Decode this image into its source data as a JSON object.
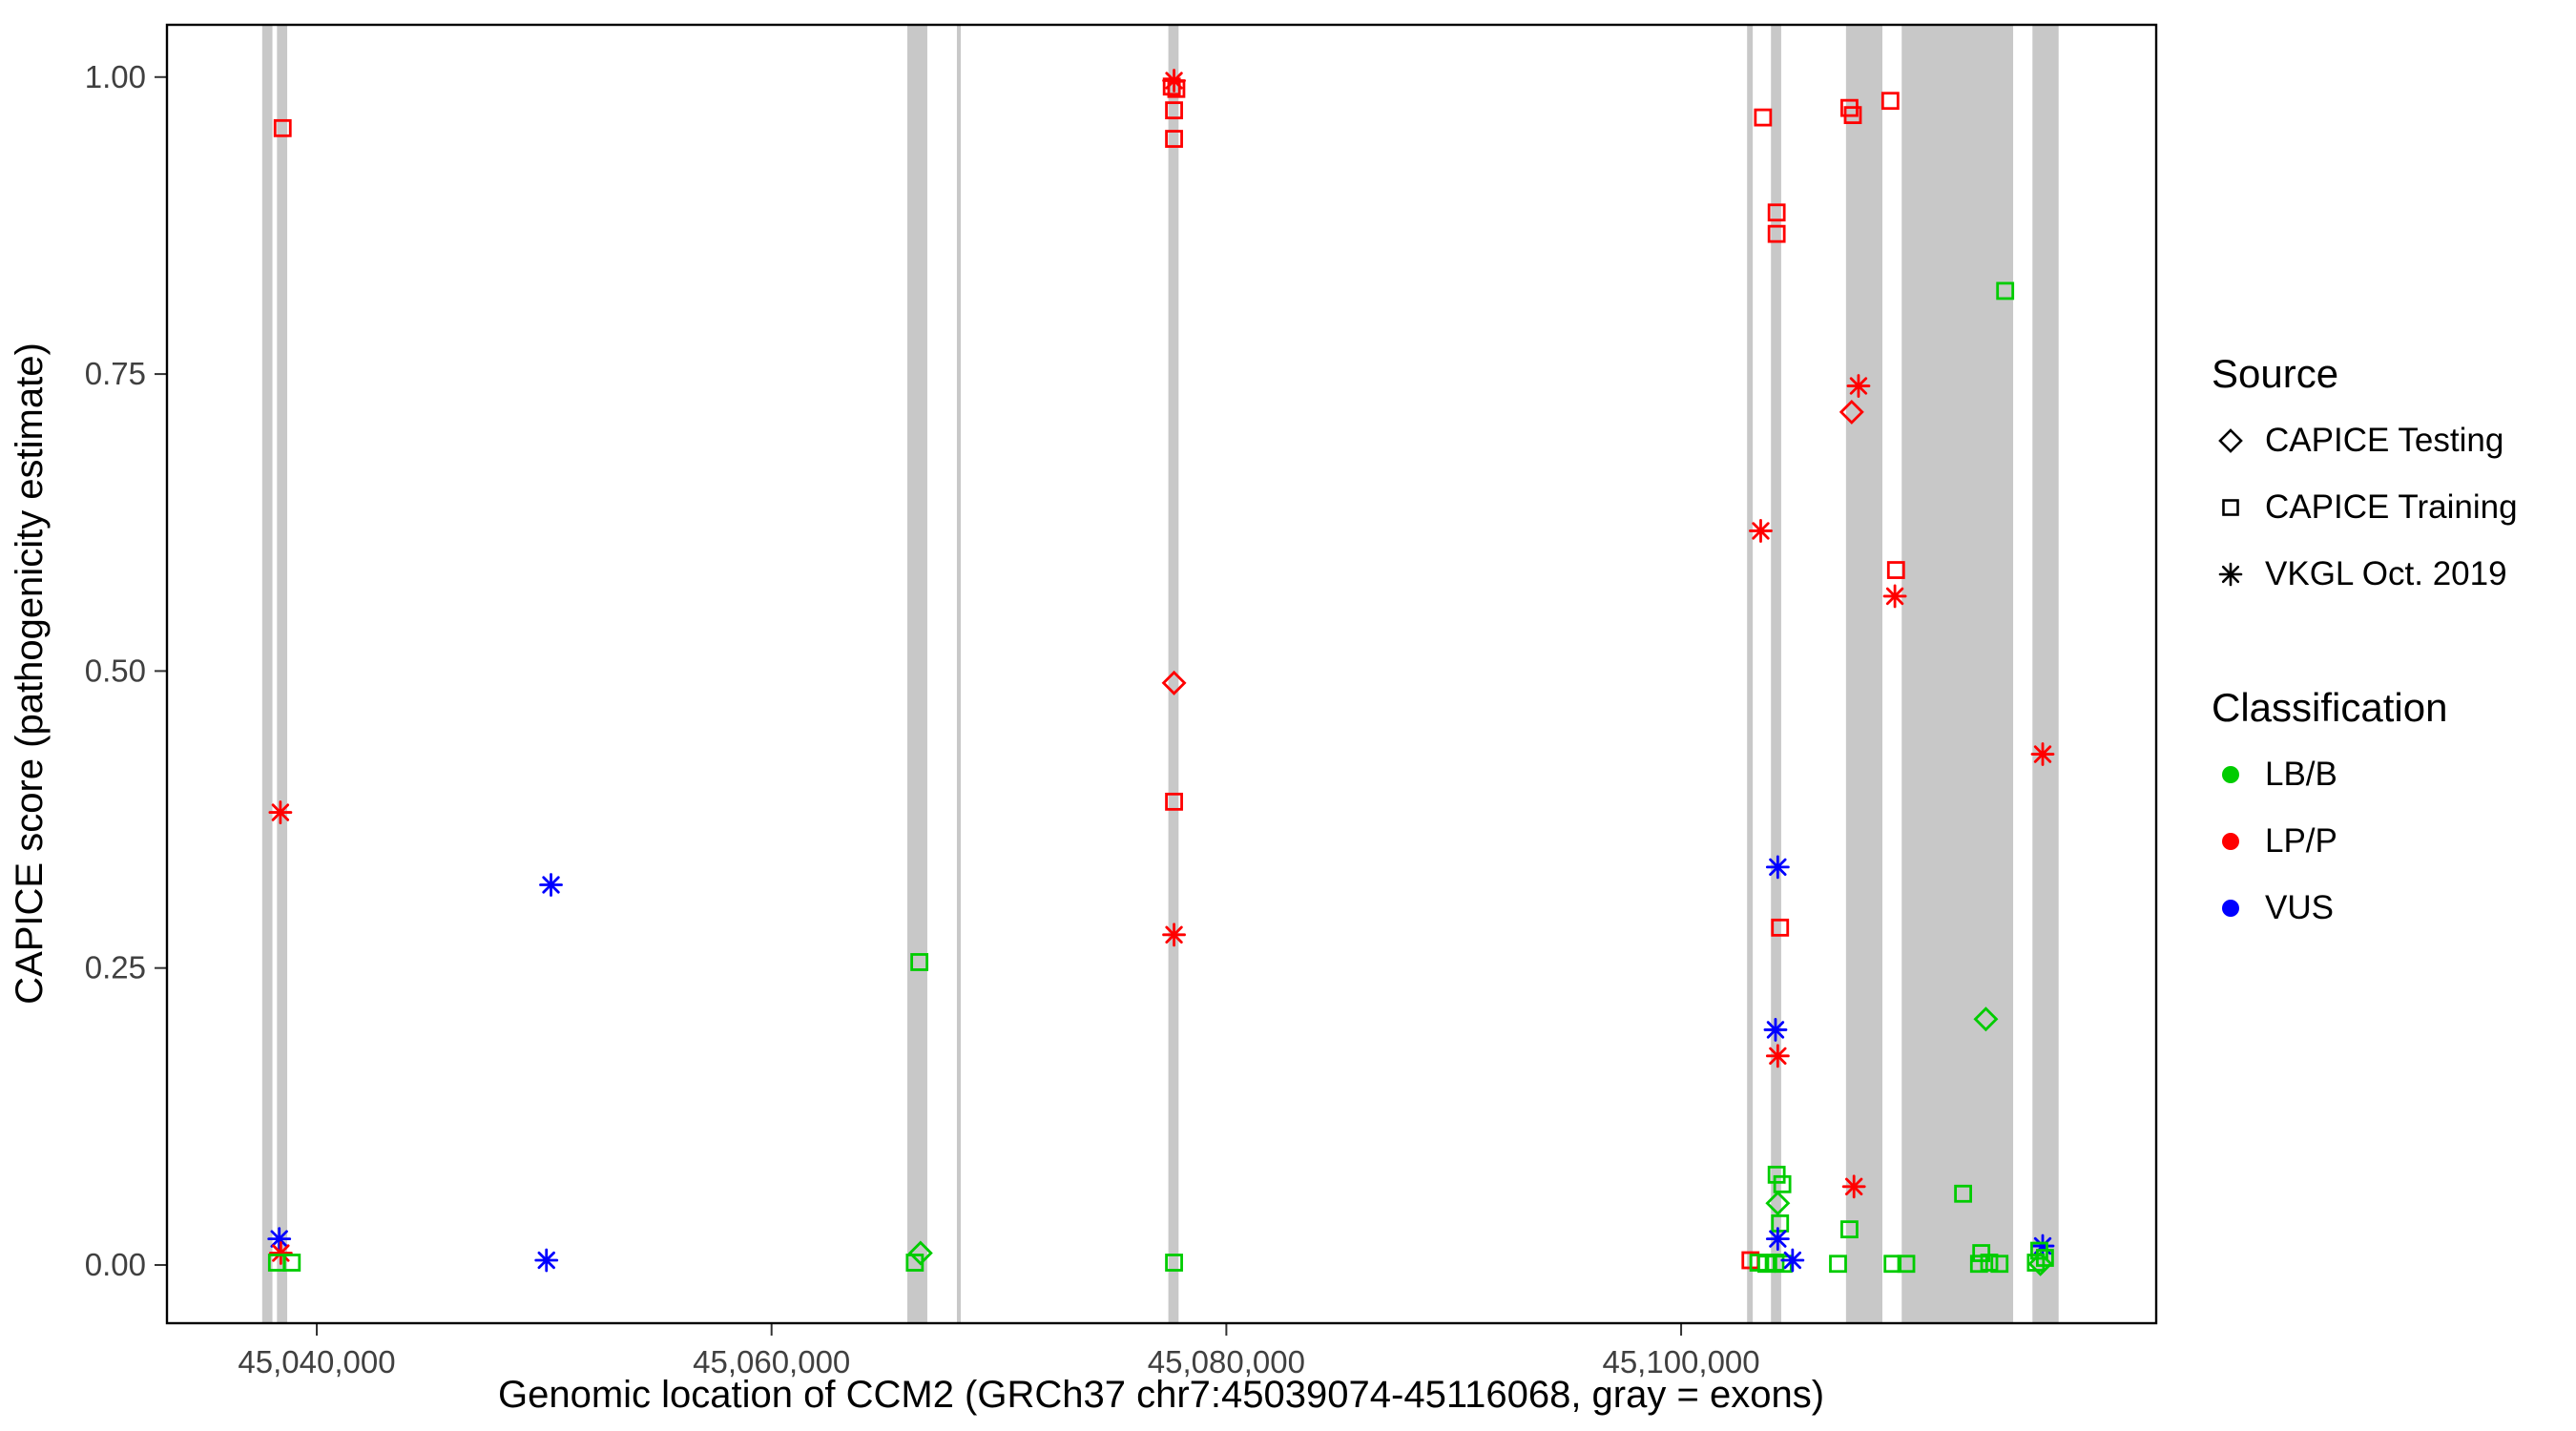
{
  "chart_data": {
    "type": "scatter",
    "title": "",
    "xlabel": "Genomic location of CCM2 (GRCh37 chr7:45039074-45116068, gray = exons)",
    "ylabel": "CAPICE score (pathogenicity estimate)",
    "xlim": [
      45033412,
      45120892
    ],
    "ylim": [
      -0.049,
      1.044
    ],
    "grid": "off",
    "legend_position": "right",
    "x_ticks": [
      {
        "value": 45040000,
        "label": "45,040,000"
      },
      {
        "value": 45060000,
        "label": "45,060,000"
      },
      {
        "value": 45080000,
        "label": "45,080,000"
      },
      {
        "value": 45100000,
        "label": "45,100,000"
      }
    ],
    "y_ticks": [
      {
        "value": 0.0,
        "label": "0.00"
      },
      {
        "value": 0.25,
        "label": "0.25"
      },
      {
        "value": 0.5,
        "label": "0.50"
      },
      {
        "value": 0.75,
        "label": "0.75"
      },
      {
        "value": 1.0,
        "label": "1.00"
      }
    ],
    "exon_color": "#C8C8C8",
    "colors": {
      "LB/B": "#00CC00",
      "LP/P": "#FF0000",
      "VUS": "#0000FF"
    },
    "shape_map": {
      "testing": "diamond",
      "training": "square",
      "vkgl": "asterisk"
    },
    "exons": [
      [
        45037600,
        45038050
      ],
      [
        45038250,
        45038700
      ],
      [
        45065970,
        45066850
      ],
      [
        45068150,
        45068320
      ],
      [
        45077450,
        45077900
      ],
      [
        45102900,
        45103150
      ],
      [
        45103950,
        45104400
      ],
      [
        45107250,
        45108850
      ],
      [
        45109700,
        45114600
      ],
      [
        45115450,
        45116600
      ]
    ],
    "points": [
      {
        "x": 45038500,
        "y": 0.957,
        "src": "training",
        "cls": "LP/P"
      },
      {
        "x": 45038400,
        "y": 0.381,
        "src": "vkgl",
        "cls": "LP/P"
      },
      {
        "x": 45038350,
        "y": 0.022,
        "src": "vkgl",
        "cls": "VUS"
      },
      {
        "x": 45038420,
        "y": 0.01,
        "src": "vkgl",
        "cls": "LP/P"
      },
      {
        "x": 45038250,
        "y": 0.002,
        "src": "training",
        "cls": "LB/B"
      },
      {
        "x": 45038900,
        "y": 0.002,
        "src": "training",
        "cls": "LB/B"
      },
      {
        "x": 45050300,
        "y": 0.32,
        "src": "vkgl",
        "cls": "VUS"
      },
      {
        "x": 45050100,
        "y": 0.004,
        "src": "vkgl",
        "cls": "VUS"
      },
      {
        "x": 45066500,
        "y": 0.255,
        "src": "training",
        "cls": "LB/B"
      },
      {
        "x": 45066550,
        "y": 0.01,
        "src": "testing",
        "cls": "LB/B"
      },
      {
        "x": 45066300,
        "y": 0.002,
        "src": "training",
        "cls": "LB/B"
      },
      {
        "x": 45077700,
        "y": 0.997,
        "src": "vkgl",
        "cls": "LP/P"
      },
      {
        "x": 45077600,
        "y": 0.992,
        "src": "training",
        "cls": "LP/P"
      },
      {
        "x": 45077800,
        "y": 0.99,
        "src": "training",
        "cls": "LP/P"
      },
      {
        "x": 45077700,
        "y": 0.972,
        "src": "training",
        "cls": "LP/P"
      },
      {
        "x": 45077700,
        "y": 0.948,
        "src": "training",
        "cls": "LP/P"
      },
      {
        "x": 45077700,
        "y": 0.49,
        "src": "testing",
        "cls": "LP/P"
      },
      {
        "x": 45077700,
        "y": 0.39,
        "src": "training",
        "cls": "LP/P"
      },
      {
        "x": 45077700,
        "y": 0.278,
        "src": "vkgl",
        "cls": "LP/P"
      },
      {
        "x": 45077700,
        "y": 0.002,
        "src": "training",
        "cls": "LB/B"
      },
      {
        "x": 45103600,
        "y": 0.966,
        "src": "training",
        "cls": "LP/P"
      },
      {
        "x": 45104200,
        "y": 0.886,
        "src": "training",
        "cls": "LP/P"
      },
      {
        "x": 45104200,
        "y": 0.868,
        "src": "training",
        "cls": "LP/P"
      },
      {
        "x": 45103500,
        "y": 0.618,
        "src": "vkgl",
        "cls": "LP/P"
      },
      {
        "x": 45104250,
        "y": 0.335,
        "src": "vkgl",
        "cls": "VUS"
      },
      {
        "x": 45104350,
        "y": 0.284,
        "src": "training",
        "cls": "LP/P"
      },
      {
        "x": 45104150,
        "y": 0.198,
        "src": "vkgl",
        "cls": "VUS"
      },
      {
        "x": 45104250,
        "y": 0.176,
        "src": "vkgl",
        "cls": "LP/P"
      },
      {
        "x": 45104200,
        "y": 0.076,
        "src": "training",
        "cls": "LB/B"
      },
      {
        "x": 45104450,
        "y": 0.068,
        "src": "training",
        "cls": "LB/B"
      },
      {
        "x": 45104250,
        "y": 0.052,
        "src": "testing",
        "cls": "LB/B"
      },
      {
        "x": 45104350,
        "y": 0.035,
        "src": "training",
        "cls": "LB/B"
      },
      {
        "x": 45104250,
        "y": 0.022,
        "src": "vkgl",
        "cls": "VUS"
      },
      {
        "x": 45103050,
        "y": 0.004,
        "src": "training",
        "cls": "LP/P"
      },
      {
        "x": 45103400,
        "y": 0.002,
        "src": "training",
        "cls": "LB/B"
      },
      {
        "x": 45103750,
        "y": 0.001,
        "src": "training",
        "cls": "LB/B"
      },
      {
        "x": 45104150,
        "y": 0.002,
        "src": "training",
        "cls": "LB/B"
      },
      {
        "x": 45104500,
        "y": 0.001,
        "src": "training",
        "cls": "LB/B"
      },
      {
        "x": 45104900,
        "y": 0.004,
        "src": "vkgl",
        "cls": "VUS"
      },
      {
        "x": 45107400,
        "y": 0.974,
        "src": "training",
        "cls": "LP/P"
      },
      {
        "x": 45107550,
        "y": 0.968,
        "src": "training",
        "cls": "LP/P"
      },
      {
        "x": 45109200,
        "y": 0.98,
        "src": "training",
        "cls": "LP/P"
      },
      {
        "x": 45107800,
        "y": 0.74,
        "src": "vkgl",
        "cls": "LP/P"
      },
      {
        "x": 45107500,
        "y": 0.718,
        "src": "testing",
        "cls": "LP/P"
      },
      {
        "x": 45109450,
        "y": 0.585,
        "src": "training",
        "cls": "LP/P"
      },
      {
        "x": 45109400,
        "y": 0.563,
        "src": "vkgl",
        "cls": "LP/P"
      },
      {
        "x": 45107600,
        "y": 0.066,
        "src": "vkgl",
        "cls": "LP/P"
      },
      {
        "x": 45107400,
        "y": 0.03,
        "src": "training",
        "cls": "LB/B"
      },
      {
        "x": 45106900,
        "y": 0.001,
        "src": "training",
        "cls": "LB/B"
      },
      {
        "x": 45109300,
        "y": 0.001,
        "src": "training",
        "cls": "LB/B"
      },
      {
        "x": 45109900,
        "y": 0.001,
        "src": "training",
        "cls": "LB/B"
      },
      {
        "x": 45114250,
        "y": 0.82,
        "src": "training",
        "cls": "LB/B"
      },
      {
        "x": 45113400,
        "y": 0.207,
        "src": "testing",
        "cls": "LB/B"
      },
      {
        "x": 45112400,
        "y": 0.06,
        "src": "training",
        "cls": "LB/B"
      },
      {
        "x": 45113200,
        "y": 0.01,
        "src": "training",
        "cls": "LB/B"
      },
      {
        "x": 45113100,
        "y": 0.001,
        "src": "training",
        "cls": "LB/B"
      },
      {
        "x": 45113550,
        "y": 0.002,
        "src": "training",
        "cls": "LB/B"
      },
      {
        "x": 45114000,
        "y": 0.001,
        "src": "training",
        "cls": "LB/B"
      },
      {
        "x": 45115900,
        "y": 0.43,
        "src": "vkgl",
        "cls": "LP/P"
      },
      {
        "x": 45115900,
        "y": 0.016,
        "src": "vkgl",
        "cls": "VUS"
      },
      {
        "x": 45115600,
        "y": 0.002,
        "src": "training",
        "cls": "LB/B"
      },
      {
        "x": 45116000,
        "y": 0.006,
        "src": "training",
        "cls": "LB/B"
      },
      {
        "x": 45115750,
        "y": 0.012,
        "src": "training",
        "cls": "LB/B"
      },
      {
        "x": 45115800,
        "y": 0.001,
        "src": "testing",
        "cls": "LB/B"
      }
    ]
  },
  "legend": {
    "source": {
      "title": "Source",
      "items": [
        {
          "label": "CAPICE Testing",
          "shape": "diamond"
        },
        {
          "label": "CAPICE Training",
          "shape": "square"
        },
        {
          "label": "VKGL Oct. 2019",
          "shape": "asterisk"
        }
      ]
    },
    "classification": {
      "title": "Classification",
      "items": [
        {
          "label": "LB/B",
          "color": "#00CC00"
        },
        {
          "label": "LP/P",
          "color": "#FF0000"
        },
        {
          "label": "VUS",
          "color": "#0000FF"
        }
      ]
    }
  }
}
